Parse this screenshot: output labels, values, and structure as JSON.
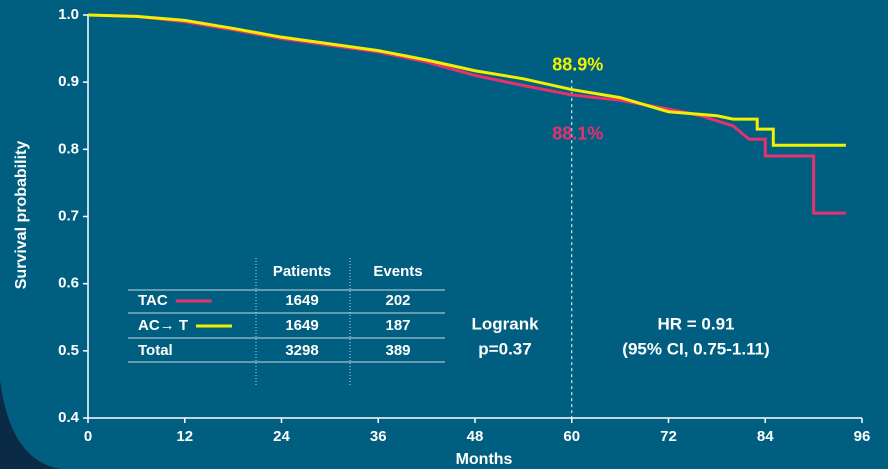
{
  "chart_data": {
    "type": "line",
    "xlabel": "Months",
    "ylabel": "Survival probability",
    "xlim": [
      0,
      96
    ],
    "ylim": [
      0.4,
      1.0
    ],
    "xticks": [
      0,
      12,
      24,
      36,
      48,
      60,
      72,
      84,
      96
    ],
    "yticks": [
      {
        "value": 1.0,
        "label": "1.0"
      },
      {
        "value": 0.9,
        "label": "0.9"
      },
      {
        "value": 0.8,
        "label": "0.8"
      },
      {
        "value": 0.7,
        "label": "0.7"
      },
      {
        "value": 0.6,
        "label": "0.6"
      },
      {
        "value": 0.5,
        "label": "0.5"
      },
      {
        "value": 0.4,
        "label": "0.4"
      }
    ],
    "vline": 60,
    "series": [
      {
        "name": "TAC",
        "color": "#e8306e",
        "annotation": "88.1%",
        "x": [
          0,
          6,
          12,
          18,
          24,
          30,
          36,
          42,
          48,
          54,
          60,
          66,
          72,
          76,
          80,
          82,
          84,
          84,
          90,
          90,
          94
        ],
        "values": [
          1.0,
          0.998,
          0.99,
          0.978,
          0.965,
          0.955,
          0.945,
          0.93,
          0.91,
          0.895,
          0.881,
          0.873,
          0.86,
          0.85,
          0.835,
          0.815,
          0.815,
          0.79,
          0.79,
          0.705,
          0.705
        ]
      },
      {
        "name": "AC→ T",
        "color": "#f0f000",
        "annotation": "88.9%",
        "x": [
          0,
          6,
          12,
          18,
          24,
          30,
          36,
          42,
          48,
          54,
          60,
          66,
          72,
          78,
          80,
          83,
          83,
          85,
          85,
          94
        ],
        "values": [
          1.0,
          0.998,
          0.992,
          0.98,
          0.967,
          0.957,
          0.947,
          0.933,
          0.917,
          0.905,
          0.889,
          0.877,
          0.856,
          0.85,
          0.845,
          0.845,
          0.83,
          0.83,
          0.806,
          0.806
        ]
      }
    ],
    "texts": [
      "Logrank",
      "p=0.37",
      "HR = 0.91",
      "(95% CI, 0.75-1.11)"
    ]
  },
  "table": {
    "columns": [
      "Patients",
      "Events"
    ],
    "rows": [
      {
        "cells": [
          1649,
          202
        ]
      },
      {
        "cells": [
          1649,
          187
        ]
      },
      {
        "label": "Total",
        "cells": [
          3298,
          389
        ]
      }
    ]
  }
}
